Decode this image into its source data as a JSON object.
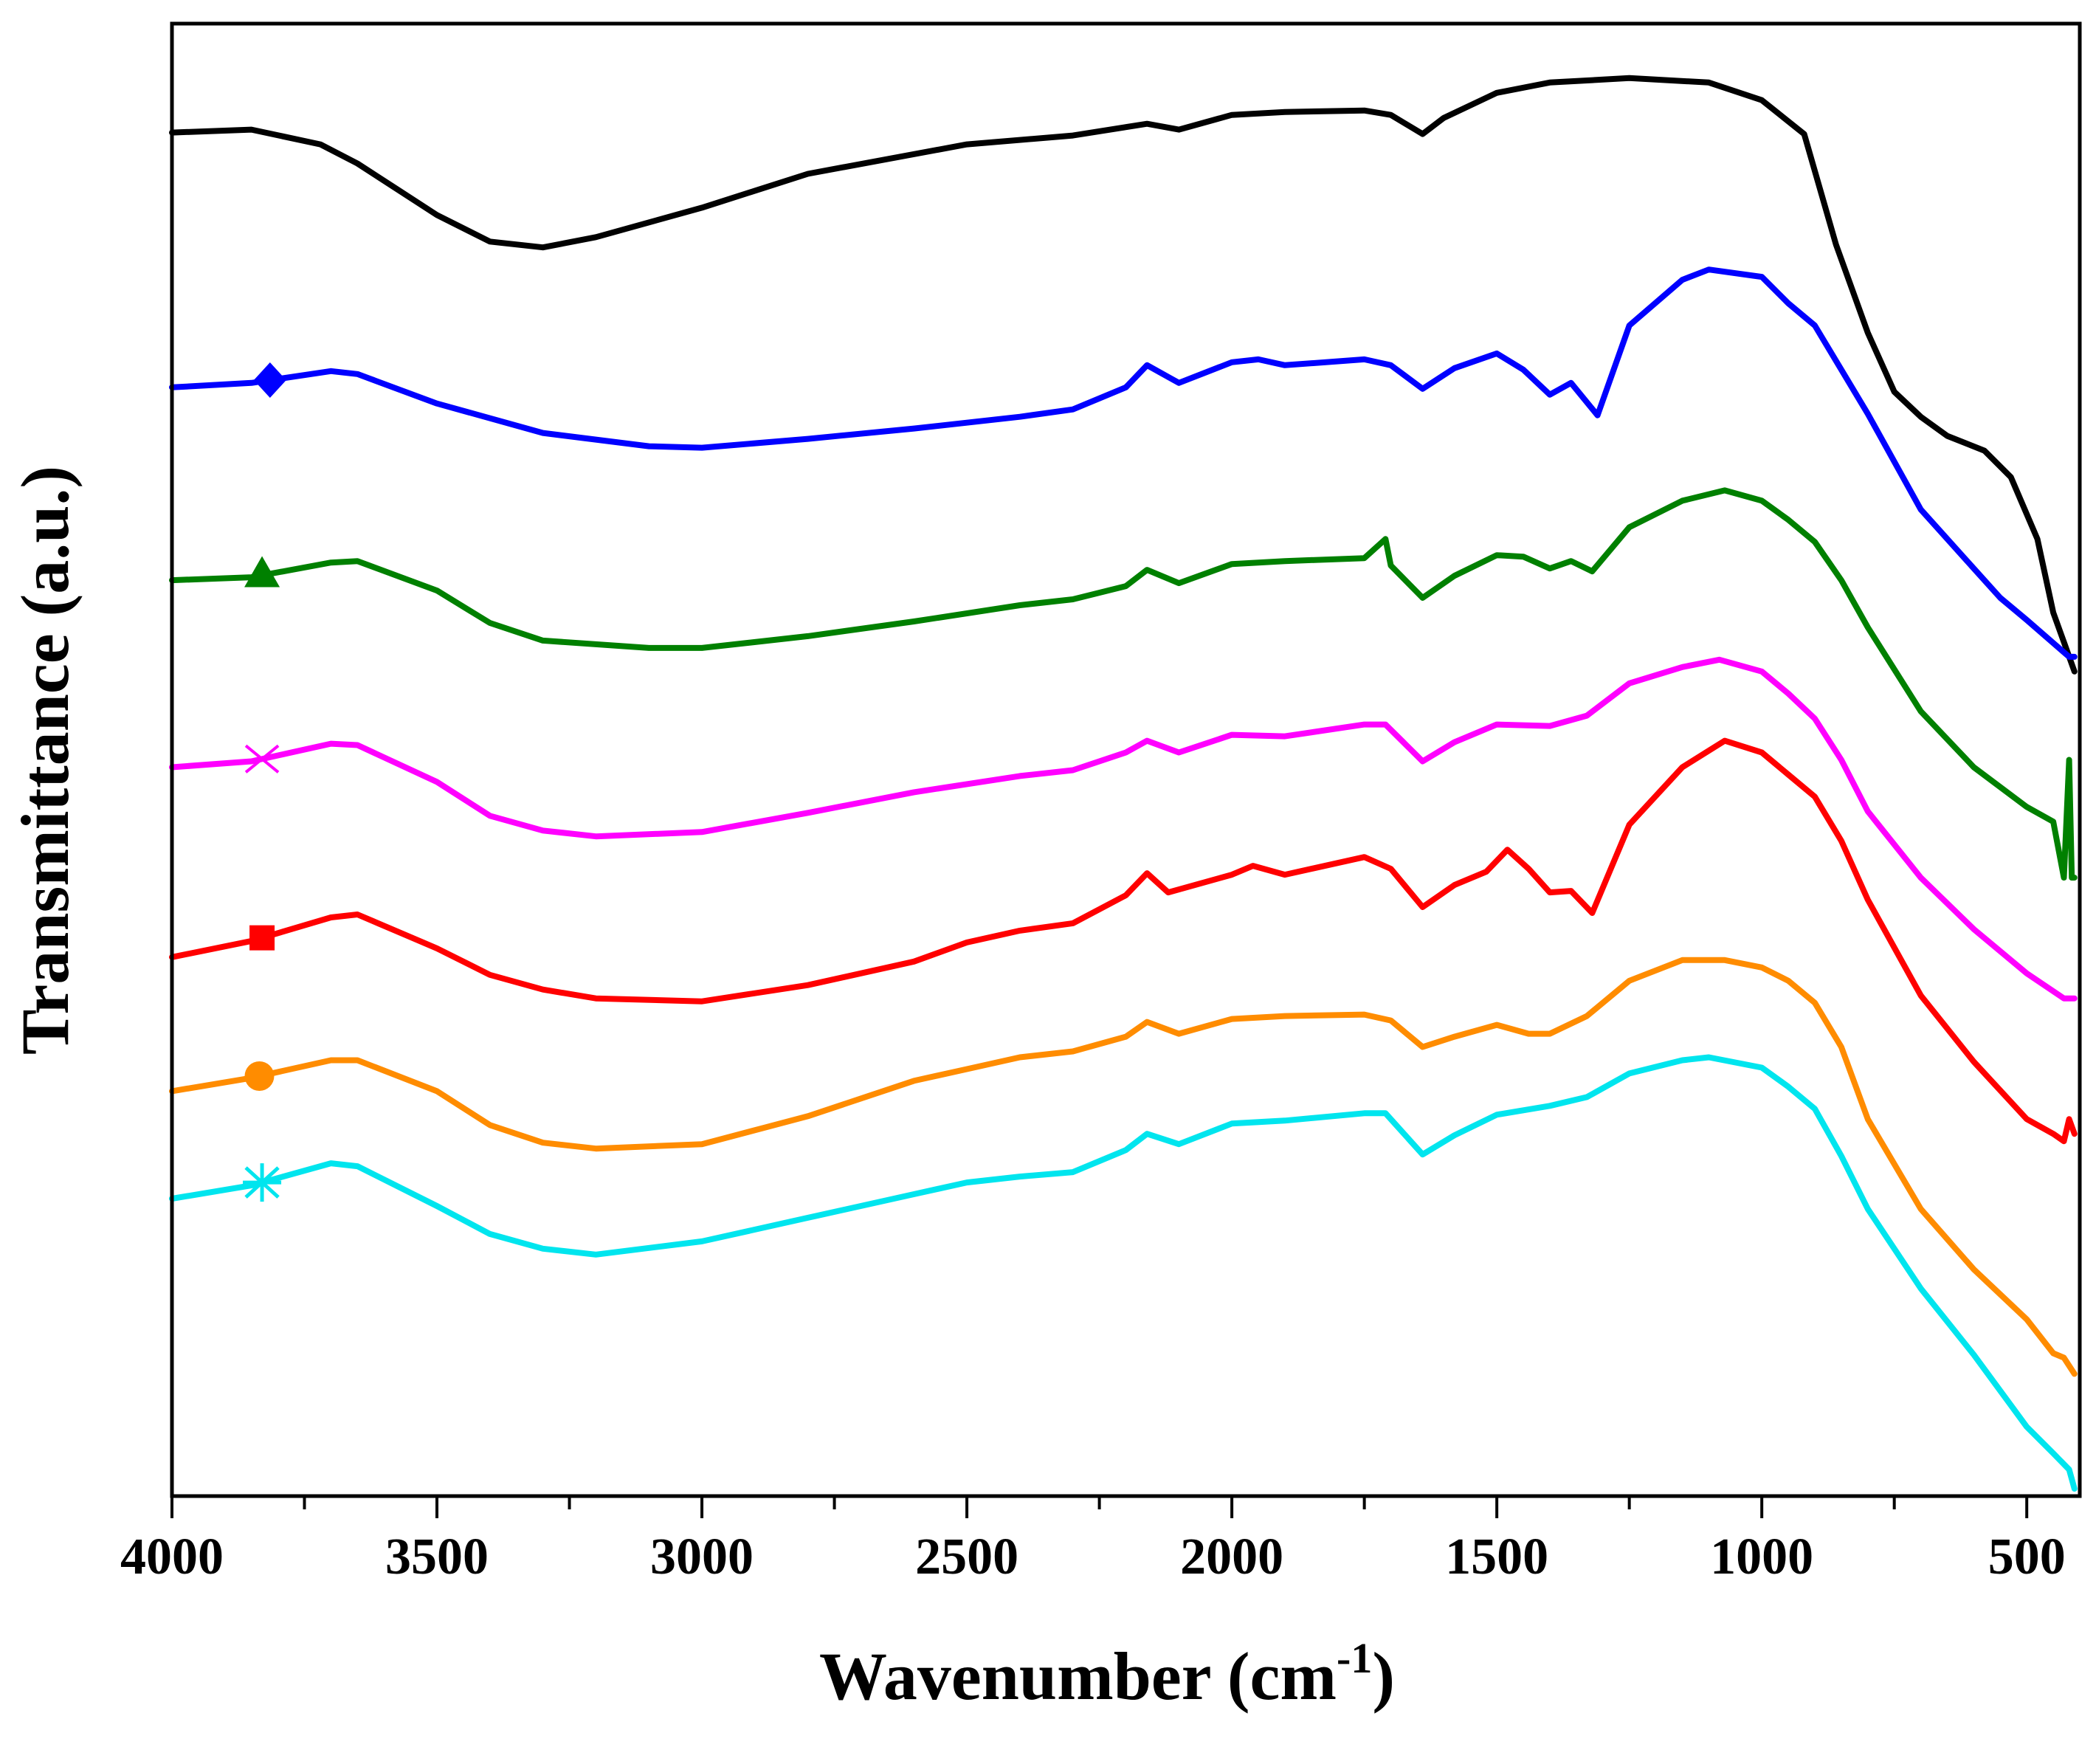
{
  "chart_data": {
    "type": "line",
    "title": "",
    "xlabel": "Wavenumber (cm",
    "xlabel_superscript": "-1",
    "xlabel_suffix": ")",
    "ylabel": "Transmittance (a.u.)",
    "xlim": [
      4000,
      400
    ],
    "x_reversed": true,
    "ylim": [
      0,
      100
    ],
    "y_ticks_shown": false,
    "grid": false,
    "x_ticks": [
      4000,
      3500,
      3000,
      2500,
      2000,
      1500,
      1000,
      500
    ],
    "x_tick_labels": [
      "4000",
      "3500",
      "3000",
      "2500",
      "2000",
      "1500",
      "1000",
      "500"
    ],
    "series": [
      {
        "name": "black",
        "color": "#000000",
        "marker": "none",
        "points": [
          [
            4000,
            92.6
          ],
          [
            3850,
            92.8
          ],
          [
            3720,
            91.8
          ],
          [
            3650,
            90.5
          ],
          [
            3500,
            87
          ],
          [
            3400,
            85.2
          ],
          [
            3300,
            84.8
          ],
          [
            3200,
            85.5
          ],
          [
            3000,
            87.5
          ],
          [
            2800,
            89.8
          ],
          [
            2500,
            91.8
          ],
          [
            2300,
            92.4
          ],
          [
            2160,
            93.2
          ],
          [
            2100,
            92.8
          ],
          [
            2000,
            93.8
          ],
          [
            1900,
            94.0
          ],
          [
            1750,
            94.1
          ],
          [
            1700,
            93.8
          ],
          [
            1640,
            92.5
          ],
          [
            1600,
            93.6
          ],
          [
            1500,
            95.3
          ],
          [
            1400,
            96.0
          ],
          [
            1250,
            96.3
          ],
          [
            1100,
            96.0
          ],
          [
            1000,
            94.8
          ],
          [
            920,
            92.5
          ],
          [
            860,
            85
          ],
          [
            800,
            79
          ],
          [
            750,
            75
          ],
          [
            700,
            73.3
          ],
          [
            650,
            72
          ],
          [
            580,
            71
          ],
          [
            530,
            69.2
          ],
          [
            480,
            65
          ],
          [
            450,
            60
          ],
          [
            430,
            58
          ],
          [
            410,
            56
          ]
        ]
      },
      {
        "name": "blue",
        "color": "#0000ff",
        "marker": "diamond",
        "marker_x": 3815,
        "points": [
          [
            4000,
            75.3
          ],
          [
            3850,
            75.6
          ],
          [
            3700,
            76.4
          ],
          [
            3650,
            76.2
          ],
          [
            3500,
            74.2
          ],
          [
            3300,
            72.2
          ],
          [
            3100,
            71.3
          ],
          [
            3000,
            71.2
          ],
          [
            2800,
            71.8
          ],
          [
            2600,
            72.5
          ],
          [
            2400,
            73.3
          ],
          [
            2300,
            73.8
          ],
          [
            2200,
            75.3
          ],
          [
            2160,
            76.8
          ],
          [
            2100,
            75.6
          ],
          [
            2000,
            77
          ],
          [
            1950,
            77.2
          ],
          [
            1900,
            76.8
          ],
          [
            1750,
            77.2
          ],
          [
            1700,
            76.8
          ],
          [
            1640,
            75.2
          ],
          [
            1580,
            76.6
          ],
          [
            1500,
            77.6
          ],
          [
            1450,
            76.5
          ],
          [
            1400,
            74.8
          ],
          [
            1360,
            75.6
          ],
          [
            1310,
            73.4
          ],
          [
            1250,
            79.5
          ],
          [
            1150,
            82.6
          ],
          [
            1100,
            83.3
          ],
          [
            1000,
            82.8
          ],
          [
            950,
            81
          ],
          [
            900,
            79.5
          ],
          [
            850,
            76.5
          ],
          [
            800,
            73.5
          ],
          [
            700,
            67
          ],
          [
            600,
            63
          ],
          [
            550,
            61
          ],
          [
            500,
            59.5
          ],
          [
            420,
            57
          ],
          [
            410,
            57
          ]
        ]
      },
      {
        "name": "green",
        "color": "#008000",
        "marker": "triangle",
        "marker_x": 3830,
        "points": [
          [
            4000,
            62.2
          ],
          [
            3850,
            62.4
          ],
          [
            3700,
            63.4
          ],
          [
            3650,
            63.5
          ],
          [
            3500,
            61.5
          ],
          [
            3400,
            59.3
          ],
          [
            3300,
            58.1
          ],
          [
            3100,
            57.6
          ],
          [
            3000,
            57.6
          ],
          [
            2800,
            58.4
          ],
          [
            2600,
            59.4
          ],
          [
            2400,
            60.5
          ],
          [
            2300,
            60.9
          ],
          [
            2200,
            61.8
          ],
          [
            2160,
            62.9
          ],
          [
            2100,
            62.0
          ],
          [
            2000,
            63.3
          ],
          [
            1900,
            63.5
          ],
          [
            1750,
            63.7
          ],
          [
            1710,
            65
          ],
          [
            1700,
            63.2
          ],
          [
            1640,
            61
          ],
          [
            1580,
            62.5
          ],
          [
            1500,
            63.9
          ],
          [
            1450,
            63.8
          ],
          [
            1400,
            63.0
          ],
          [
            1360,
            63.5
          ],
          [
            1320,
            62.8
          ],
          [
            1250,
            65.8
          ],
          [
            1150,
            67.6
          ],
          [
            1070,
            68.3
          ],
          [
            1000,
            67.6
          ],
          [
            950,
            66.3
          ],
          [
            900,
            64.8
          ],
          [
            850,
            62.2
          ],
          [
            800,
            59
          ],
          [
            700,
            53.3
          ],
          [
            600,
            49.5
          ],
          [
            500,
            46.8
          ],
          [
            450,
            45.8
          ],
          [
            430,
            42
          ],
          [
            420,
            50
          ],
          [
            415,
            42
          ],
          [
            410,
            42
          ]
        ]
      },
      {
        "name": "magenta",
        "color": "#ff00ff",
        "marker": "cross",
        "marker_x": 3830,
        "points": [
          [
            4000,
            49.5
          ],
          [
            3850,
            49.9
          ],
          [
            3700,
            51.1
          ],
          [
            3650,
            51.0
          ],
          [
            3500,
            48.5
          ],
          [
            3400,
            46.2
          ],
          [
            3300,
            45.2
          ],
          [
            3200,
            44.8
          ],
          [
            3000,
            45.1
          ],
          [
            2800,
            46.4
          ],
          [
            2600,
            47.8
          ],
          [
            2400,
            48.9
          ],
          [
            2300,
            49.3
          ],
          [
            2200,
            50.5
          ],
          [
            2160,
            51.3
          ],
          [
            2100,
            50.5
          ],
          [
            2000,
            51.7
          ],
          [
            1900,
            51.6
          ],
          [
            1750,
            52.4
          ],
          [
            1710,
            52.4
          ],
          [
            1640,
            49.9
          ],
          [
            1580,
            51.2
          ],
          [
            1500,
            52.4
          ],
          [
            1400,
            52.3
          ],
          [
            1330,
            53.0
          ],
          [
            1250,
            55.2
          ],
          [
            1150,
            56.3
          ],
          [
            1080,
            56.8
          ],
          [
            1000,
            56
          ],
          [
            950,
            54.5
          ],
          [
            900,
            52.8
          ],
          [
            850,
            50
          ],
          [
            800,
            46.5
          ],
          [
            700,
            42
          ],
          [
            600,
            38.5
          ],
          [
            500,
            35.5
          ],
          [
            430,
            33.8
          ],
          [
            410,
            33.8
          ]
        ]
      },
      {
        "name": "red",
        "color": "#ff0000",
        "marker": "square",
        "marker_x": 3830,
        "points": [
          [
            4000,
            36.6
          ],
          [
            3850,
            37.7
          ],
          [
            3700,
            39.3
          ],
          [
            3650,
            39.5
          ],
          [
            3500,
            37.2
          ],
          [
            3400,
            35.4
          ],
          [
            3300,
            34.4
          ],
          [
            3200,
            33.8
          ],
          [
            3000,
            33.6
          ],
          [
            2800,
            34.7
          ],
          [
            2600,
            36.3
          ],
          [
            2500,
            37.6
          ],
          [
            2400,
            38.4
          ],
          [
            2300,
            38.9
          ],
          [
            2200,
            40.8
          ],
          [
            2160,
            42.3
          ],
          [
            2120,
            41.0
          ],
          [
            2000,
            42.2
          ],
          [
            1960,
            42.8
          ],
          [
            1900,
            42.2
          ],
          [
            1750,
            43.4
          ],
          [
            1700,
            42.6
          ],
          [
            1640,
            40.0
          ],
          [
            1580,
            41.5
          ],
          [
            1520,
            42.4
          ],
          [
            1480,
            43.9
          ],
          [
            1440,
            42.6
          ],
          [
            1400,
            41
          ],
          [
            1360,
            41.1
          ],
          [
            1320,
            39.6
          ],
          [
            1250,
            45.6
          ],
          [
            1150,
            49.5
          ],
          [
            1070,
            51.3
          ],
          [
            1000,
            50.5
          ],
          [
            950,
            49
          ],
          [
            900,
            47.5
          ],
          [
            850,
            44.5
          ],
          [
            800,
            40.5
          ],
          [
            700,
            34
          ],
          [
            600,
            29.5
          ],
          [
            500,
            25.6
          ],
          [
            450,
            24.6
          ],
          [
            430,
            24.1
          ],
          [
            420,
            25.6
          ],
          [
            410,
            24.6
          ]
        ]
      },
      {
        "name": "orange",
        "color": "#ff8c00",
        "marker": "circle",
        "marker_x": 3835,
        "points": [
          [
            4000,
            27.5
          ],
          [
            3850,
            28.4
          ],
          [
            3700,
            29.6
          ],
          [
            3650,
            29.6
          ],
          [
            3500,
            27.5
          ],
          [
            3400,
            25.2
          ],
          [
            3300,
            24.0
          ],
          [
            3200,
            23.6
          ],
          [
            3000,
            23.9
          ],
          [
            2800,
            25.8
          ],
          [
            2600,
            28.2
          ],
          [
            2500,
            29.0
          ],
          [
            2400,
            29.8
          ],
          [
            2300,
            30.2
          ],
          [
            2200,
            31.2
          ],
          [
            2160,
            32.2
          ],
          [
            2100,
            31.4
          ],
          [
            2000,
            32.4
          ],
          [
            1900,
            32.6
          ],
          [
            1750,
            32.7
          ],
          [
            1700,
            32.3
          ],
          [
            1640,
            30.5
          ],
          [
            1580,
            31.2
          ],
          [
            1500,
            32.0
          ],
          [
            1440,
            31.4
          ],
          [
            1400,
            31.4
          ],
          [
            1330,
            32.6
          ],
          [
            1250,
            35
          ],
          [
            1150,
            36.4
          ],
          [
            1070,
            36.4
          ],
          [
            1000,
            35.9
          ],
          [
            950,
            35
          ],
          [
            900,
            33.5
          ],
          [
            850,
            30.5
          ],
          [
            800,
            25.6
          ],
          [
            700,
            19.5
          ],
          [
            600,
            15.4
          ],
          [
            500,
            12
          ],
          [
            450,
            9.7
          ],
          [
            430,
            9.4
          ],
          [
            410,
            8.3
          ]
        ]
      },
      {
        "name": "cyan",
        "color": "#00e5ee",
        "marker": "asterisk",
        "marker_x": 3830,
        "points": [
          [
            4000,
            20.2
          ],
          [
            3850,
            21.1
          ],
          [
            3700,
            22.6
          ],
          [
            3650,
            22.4
          ],
          [
            3500,
            19.7
          ],
          [
            3400,
            17.8
          ],
          [
            3300,
            16.8
          ],
          [
            3200,
            16.4
          ],
          [
            3000,
            17.3
          ],
          [
            2800,
            18.9
          ],
          [
            2600,
            20.5
          ],
          [
            2500,
            21.3
          ],
          [
            2400,
            21.7
          ],
          [
            2300,
            22.0
          ],
          [
            2200,
            23.5
          ],
          [
            2160,
            24.6
          ],
          [
            2100,
            23.9
          ],
          [
            2000,
            25.3
          ],
          [
            1900,
            25.5
          ],
          [
            1750,
            26.0
          ],
          [
            1710,
            26.0
          ],
          [
            1640,
            23.2
          ],
          [
            1580,
            24.5
          ],
          [
            1500,
            25.9
          ],
          [
            1400,
            26.5
          ],
          [
            1330,
            27.1
          ],
          [
            1250,
            28.7
          ],
          [
            1150,
            29.6
          ],
          [
            1100,
            29.8
          ],
          [
            1000,
            29.1
          ],
          [
            950,
            27.8
          ],
          [
            900,
            26.3
          ],
          [
            850,
            23.1
          ],
          [
            800,
            19.5
          ],
          [
            700,
            14.1
          ],
          [
            600,
            9.6
          ],
          [
            500,
            4.7
          ],
          [
            450,
            2.9
          ],
          [
            420,
            1.8
          ],
          [
            410,
            0.5
          ]
        ]
      }
    ]
  }
}
